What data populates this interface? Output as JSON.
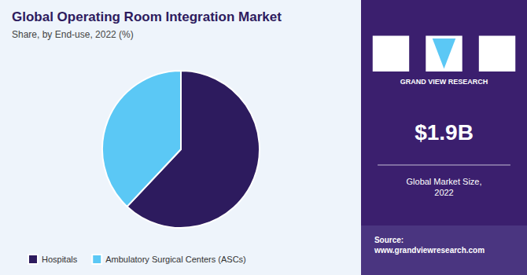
{
  "chart_data": {
    "type": "pie",
    "title": "Global Operating Room Integration Market",
    "subtitle": "Share, by End-use, 2022 (%)",
    "categories": [
      "Hospitals",
      "Ambulatory Surgical Centers (ASCs)"
    ],
    "values": [
      62,
      38
    ],
    "colors": [
      "#2d1b5e",
      "#5bc8f5"
    ],
    "legend": "bottom",
    "annotations": [
      "GRAND VIEW RESEARCH",
      "$1.9B",
      "Global Market Size,\n2022",
      "Source:\nwww.grandviewresearch.com"
    ]
  }
}
